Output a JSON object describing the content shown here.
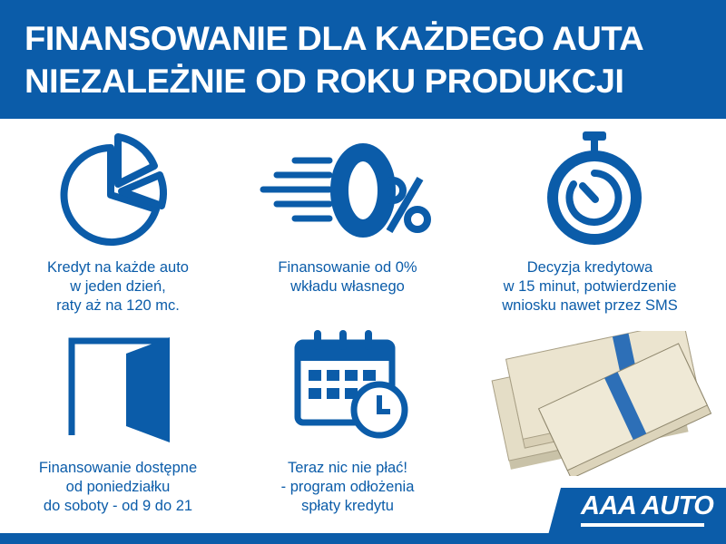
{
  "header": {
    "line1": "FINANSOWANIE DLA KAŻDEGO AUTA",
    "line2": "NIEZALEŻNIE OD ROKU PRODUKCJI"
  },
  "features": [
    {
      "icon": "pie-chart-icon",
      "lines": [
        "Kredyt na każde auto",
        "w jeden dzień,",
        "raty aż na 120 mc."
      ]
    },
    {
      "icon": "zero-percent-icon",
      "lines": [
        "Finansowanie od 0%",
        "wkładu własnego"
      ]
    },
    {
      "icon": "stopwatch-icon",
      "lines": [
        "Decyzja kredytowa",
        "w 15 minut, potwierdzenie",
        "wniosku nawet przez SMS"
      ]
    },
    {
      "icon": "open-door-icon",
      "lines": [
        "Finansowanie dostępne",
        "od poniedziałku",
        "do soboty - od 9 do 21"
      ]
    },
    {
      "icon": "calendar-clock-icon",
      "lines": [
        "Teraz nic nie płać!",
        "- program odłożenia",
        "spłaty kredytu"
      ]
    }
  ],
  "logo": {
    "text": "AAA AUTO"
  },
  "colors": {
    "brand_blue": "#0b5ca9"
  }
}
